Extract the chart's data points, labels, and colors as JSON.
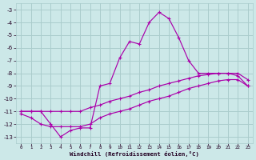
{
  "background_color": "#cce8e8",
  "grid_color": "#aacccc",
  "line_color": "#aa00aa",
  "xlim": [
    -0.5,
    23.5
  ],
  "ylim": [
    -13.5,
    -2.5
  ],
  "xticks": [
    0,
    1,
    2,
    3,
    4,
    5,
    6,
    7,
    8,
    9,
    10,
    11,
    12,
    13,
    14,
    15,
    16,
    17,
    18,
    19,
    20,
    21,
    22,
    23
  ],
  "yticks": [
    -13,
    -12,
    -11,
    -10,
    -9,
    -8,
    -7,
    -6,
    -5,
    -4,
    -3
  ],
  "xlabel": "Windchill (Refroidissement éolien,°C)",
  "curve_peak_x": [
    0,
    1,
    2,
    3,
    4,
    5,
    6,
    7,
    8,
    9,
    10,
    11,
    12,
    13,
    14,
    15,
    16,
    17,
    18,
    19,
    20,
    21,
    22,
    23
  ],
  "curve_peak_y": [
    -11,
    -11,
    -11,
    -12,
    -13,
    -12.5,
    -12.3,
    -12.3,
    -9.0,
    -8.8,
    -6.8,
    -5.5,
    -5.7,
    -4.0,
    -3.2,
    -3.7,
    -5.2,
    -7.0,
    -8.0,
    -8.0,
    -8.0,
    -8.0,
    -8.2,
    -9.0
  ],
  "curve_upper_x": [
    0,
    1,
    2,
    3,
    4,
    5,
    6,
    7,
    8,
    9,
    10,
    11,
    12,
    13,
    14,
    15,
    16,
    17,
    18,
    19,
    20,
    21,
    22,
    23
  ],
  "curve_upper_y": [
    -11,
    -11,
    -11,
    -11,
    -11,
    -11,
    -11,
    -10.7,
    -10.5,
    -10.2,
    -10.0,
    -9.8,
    -9.5,
    -9.3,
    -9.0,
    -8.8,
    -8.6,
    -8.4,
    -8.2,
    -8.1,
    -8.0,
    -8.0,
    -8.0,
    -8.5
  ],
  "curve_lower_x": [
    0,
    1,
    2,
    3,
    4,
    5,
    6,
    7,
    8,
    9,
    10,
    11,
    12,
    13,
    14,
    15,
    16,
    17,
    18,
    19,
    20,
    21,
    22,
    23
  ],
  "curve_lower_y": [
    -11.2,
    -11.5,
    -12.0,
    -12.2,
    -12.2,
    -12.2,
    -12.2,
    -12.0,
    -11.5,
    -11.2,
    -11.0,
    -10.8,
    -10.5,
    -10.2,
    -10.0,
    -9.8,
    -9.5,
    -9.2,
    -9.0,
    -8.8,
    -8.6,
    -8.5,
    -8.5,
    -9.0
  ]
}
